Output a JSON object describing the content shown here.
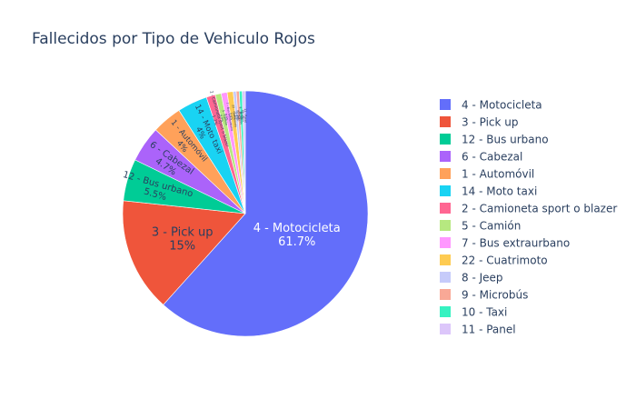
{
  "chart_data": {
    "type": "pie",
    "title": "Fallecidos por Tipo de Vehiculo Rojos",
    "legend_position": "right",
    "slices": [
      {
        "label": "4 - Motocicleta",
        "value": 62.4,
        "color": "#636efa"
      },
      {
        "label": "3 - Pick up",
        "value": 15.2,
        "color": "#ef553b"
      },
      {
        "label": "12 - Bus urbano",
        "value": 5.6,
        "color": "#00cc96"
      },
      {
        "label": "6 - Cabezal",
        "value": 4.8,
        "color": "#ab63fa"
      },
      {
        "label": "1 - Automóvil",
        "value": 4,
        "color": "#ffa15a"
      },
      {
        "label": "14 - Moto taxi",
        "value": 4,
        "color": "#19d3f3"
      },
      {
        "label": "2 - Camioneta sport o blazer",
        "value": 1.2,
        "color": "#ff6692"
      },
      {
        "label": "5 - Camión",
        "value": 0.8,
        "color": "#b6e880"
      },
      {
        "label": "7 - Bus extraurbano",
        "value": 0.8,
        "color": "#ff97ff"
      },
      {
        "label": "22 - Cuatrimoto",
        "value": 0.8,
        "color": "#fecb52"
      },
      {
        "label": "8 - Jeep",
        "value": 0.4,
        "color": "#c6cbfa"
      },
      {
        "label": "9 - Microbús",
        "value": 0.4,
        "color": "#f9a896"
      },
      {
        "label": "10 - Taxi",
        "value": 0.4,
        "color": "#36f2c1"
      },
      {
        "label": "11 - Panel",
        "value": 0.4,
        "color": "#dcc6fa"
      }
    ]
  }
}
